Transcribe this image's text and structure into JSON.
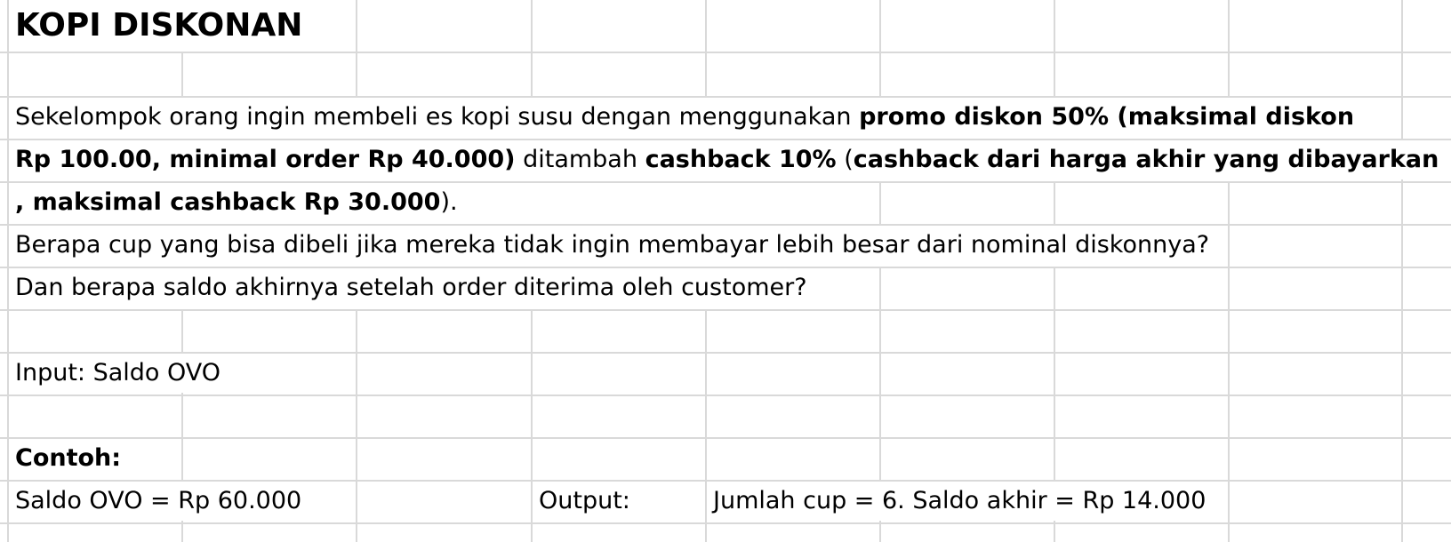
{
  "sheet": {
    "title": "KOPI DISKONAN",
    "line1_a": "Sekelompok orang ingin membeli es kopi susu dengan menggunakan ",
    "line1_b": "promo diskon 50% (maksimal diskon",
    "line2_a": "Rp 100.00, minimal order Rp 40.000)",
    "line2_b": " ditambah ",
    "line2_c": "cashback 10%",
    "line2_d": " (",
    "line2_e": "cashback dari harga akhir yang dibayarkan",
    "line3_a": ", maksimal cashback Rp 30.000",
    "line3_b": ").",
    "line4": "Berapa cup yang bisa dibeli jika mereka tidak ingin membayar lebih besar dari nominal diskonnya?",
    "line5": "Dan berapa saldo akhirnya setelah order diterima oleh customer?",
    "input_label": "Input: Saldo OVO",
    "example_label": "Contoh:",
    "example_input": "Saldo OVO = Rp 60.000",
    "output_label": "Output:",
    "output_value": "Jumlah cup = 6. Saldo akhir = Rp 14.000"
  }
}
